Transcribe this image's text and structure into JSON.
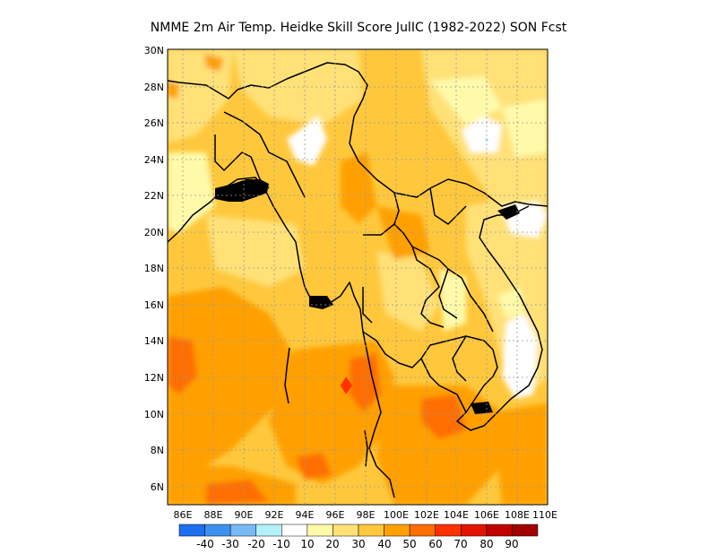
{
  "title": "NMME  2m Air Temp. Heidke Skill Score JulIC (1982-2022) SON Fcst",
  "map": {
    "lon_range": [
      85,
      110
    ],
    "lat_range": [
      5,
      30
    ],
    "lon_ticks": [
      "86E",
      "88E",
      "90E",
      "92E",
      "94E",
      "96E",
      "98E",
      "100E",
      "102E",
      "104E",
      "106E",
      "108E",
      "110E"
    ],
    "lat_ticks": [
      "6N",
      "8N",
      "10N",
      "12N",
      "14N",
      "16N",
      "18N",
      "20N",
      "22N",
      "24N",
      "26N",
      "28N",
      "30N"
    ],
    "grid": "dotted"
  },
  "colorbar": {
    "labels": [
      "-40",
      "-30",
      "-20",
      "-10",
      "10",
      "20",
      "30",
      "40",
      "50",
      "60",
      "70",
      "80",
      "90"
    ],
    "colors": [
      "#1e6ef0",
      "#3c91f0",
      "#78b9f5",
      "#b4f0fa",
      "#ffffff",
      "#fffaaa",
      "#ffe178",
      "#ffc83c",
      "#ffa000",
      "#ff6e00",
      "#ff3200",
      "#e11400",
      "#c00000",
      "#a00000"
    ]
  },
  "chart_data": {
    "type": "heatmap",
    "title": "NMME  2m Air Temp. Heidke Skill Score JulIC (1982-2022) SON Fcst",
    "xlabel": "",
    "ylabel": "",
    "x_range": [
      85,
      110
    ],
    "y_range": [
      5,
      30
    ],
    "color_levels": [
      -40,
      -30,
      -20,
      -10,
      10,
      20,
      30,
      40,
      50,
      60,
      70,
      80,
      90
    ],
    "dominant_values": "mostly 20-50; highest 50-60 over Andaman Sea / southern Thailand; white (<10) patches near 25N 94E, 24N 107E, 20N 107E, 16-12N 107E"
  }
}
